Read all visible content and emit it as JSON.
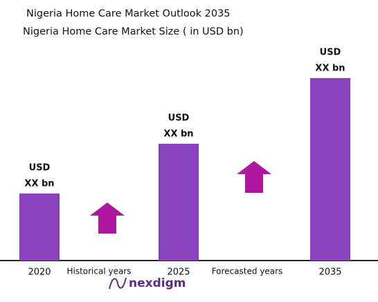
{
  "chart_data": {
    "type": "bar",
    "title": "Nigeria  Home Care Market Outlook 2035",
    "subtitle": "Nigeria Home Care Market Size  ( in USD bn)",
    "categories": [
      "2020",
      "2025",
      "2035"
    ],
    "values": [
      97,
      169,
      264
    ],
    "value_labels": [
      [
        "USD",
        "XX bn"
      ],
      [
        "USD",
        "XX bn"
      ],
      [
        "USD",
        "XX bn"
      ]
    ],
    "color": "#8a41c0",
    "ylim": [
      0,
      300
    ],
    "annotations": [
      "Historical years",
      "Forecasted years"
    ],
    "logo": "nexdigm"
  }
}
